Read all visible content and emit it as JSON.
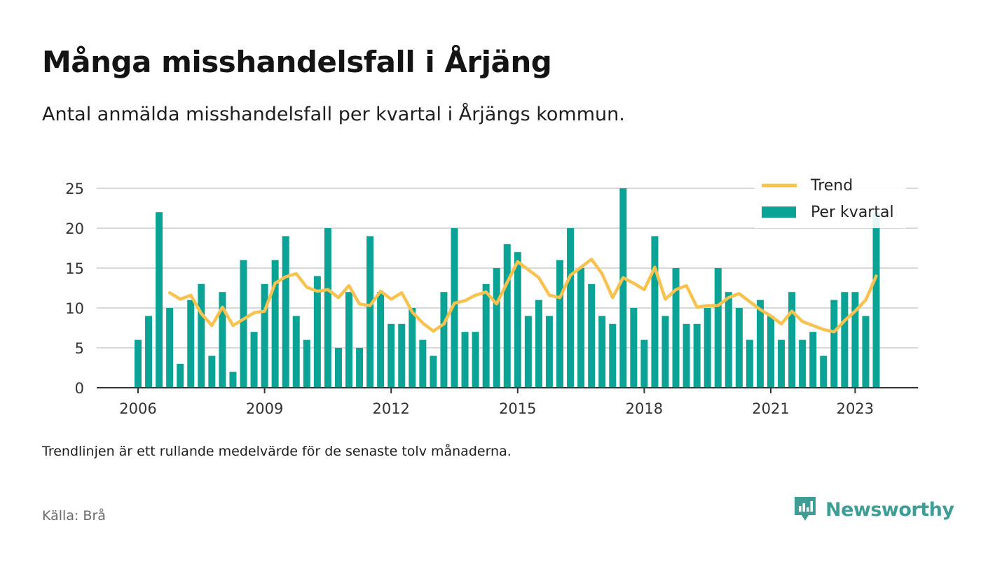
{
  "header": {
    "title": "Många misshandelsfall i Årjäng",
    "subtitle": "Antal anmälda misshandelsfall per kvartal i Årjängs kommun."
  },
  "footer": {
    "note": "Trendlinjen är ett rullande medelvärde för de senaste tolv månaderna.",
    "source": "Källa: Brå",
    "brand": "Newsworthy"
  },
  "colors": {
    "bar": "#0aa395",
    "trend": "#f7c24d",
    "grid": "#d9d9d9",
    "axis": "#333333",
    "brand": "#3e9e96"
  },
  "chart_data": {
    "type": "bar",
    "ylim": [
      0,
      25
    ],
    "yticks": [
      0,
      5,
      10,
      15,
      20,
      25
    ],
    "xtick_labels": [
      "2006",
      "2009",
      "2012",
      "2015",
      "2018",
      "2021",
      "2023"
    ],
    "grid": true,
    "legend_position": "top-right",
    "series": [
      {
        "name": "Per kvartal",
        "type": "bar",
        "start": "2006Q1",
        "values": [
          6,
          9,
          22,
          10,
          3,
          11,
          13,
          4,
          12,
          2,
          16,
          7,
          13,
          16,
          19,
          9,
          6,
          14,
          20,
          5,
          12,
          5,
          19,
          12,
          8,
          8,
          10,
          6,
          4,
          12,
          20,
          7,
          7,
          13,
          15,
          18,
          17,
          9,
          11,
          9,
          16,
          20,
          15,
          13,
          9,
          8,
          25,
          10,
          6,
          19,
          9,
          15,
          8,
          8,
          10,
          15,
          12,
          10,
          6,
          11,
          9,
          6,
          12,
          6,
          7,
          4,
          11,
          12,
          12,
          9,
          22
        ]
      },
      {
        "name": "Trend",
        "type": "line",
        "start": "2006Q4",
        "values": [
          11.9,
          11.1,
          11.6,
          9.3,
          7.8,
          10.1,
          7.8,
          8.6,
          9.4,
          9.6,
          13.1,
          13.9,
          14.3,
          12.6,
          12.1,
          12.3,
          11.3,
          12.8,
          10.5,
          10.3,
          12.1,
          11.1,
          11.9,
          9.5,
          8.1,
          7.1,
          8.0,
          10.6,
          10.9,
          11.6,
          12.0,
          10.5,
          13.2,
          15.8,
          14.8,
          13.8,
          11.6,
          11.3,
          14.1,
          15.1,
          16.1,
          14.3,
          11.3,
          13.8,
          13.1,
          12.3,
          15.1,
          11.1,
          12.3,
          12.8,
          10.1,
          10.3,
          10.3,
          11.3,
          11.8,
          10.8,
          9.8,
          9.0,
          8.0,
          9.6,
          8.3,
          7.8,
          7.3,
          7.0,
          8.4,
          9.6,
          11.0,
          14.0
        ]
      }
    ]
  }
}
